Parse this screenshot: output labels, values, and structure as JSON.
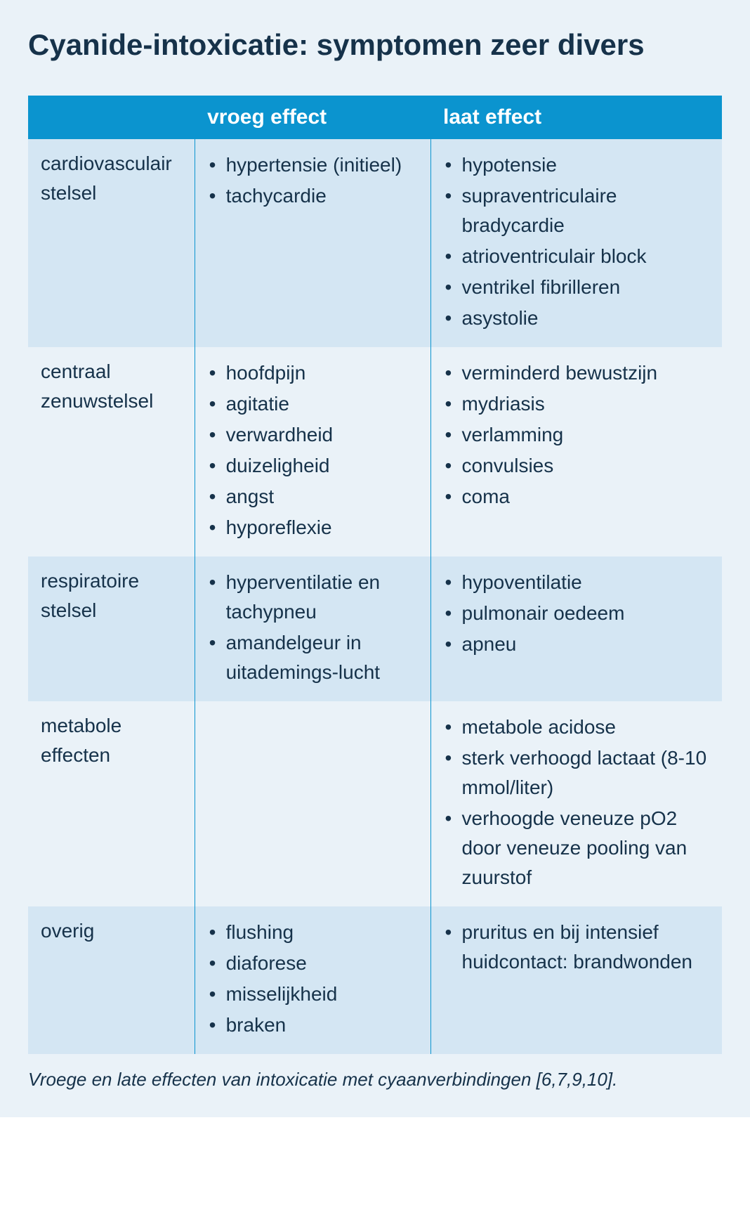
{
  "title": "Cyanide-intoxicatie: symptomen zeer divers",
  "colors": {
    "page_bg": "#eaf2f8",
    "header_bg": "#0b94cf",
    "header_text": "#ffffff",
    "row_alt_bg": "#d4e6f3",
    "row_bg": "#eaf2f8",
    "text": "#16324a",
    "divider": "#0b94cf",
    "caption": "#16324a"
  },
  "typography": {
    "title_fontsize": 42,
    "header_fontsize": 30,
    "cell_fontsize": 28,
    "caption_fontsize": 26
  },
  "table": {
    "columns": [
      "",
      "vroeg effect",
      "laat effect"
    ],
    "rows": [
      {
        "label": "cardiovasculair stelsel",
        "early": [
          "hypertensie (initieel)",
          "tachycardie"
        ],
        "late": [
          "hypotensie",
          "supraventriculaire bradycardie",
          "atrioventriculair block",
          "ventrikel fibrilleren",
          "asystolie"
        ]
      },
      {
        "label": "centraal zenuwstelsel",
        "early": [
          "hoofdpijn",
          "agitatie",
          "verwardheid",
          "duizeligheid",
          "angst",
          "hyporeflexie"
        ],
        "late": [
          "verminderd bewustzijn",
          "mydriasis",
          "verlamming",
          "convulsies",
          "coma"
        ]
      },
      {
        "label": "respiratoire stelsel",
        "early": [
          "hyperventilatie en tachypneu",
          "amandelgeur in uitademings-lucht"
        ],
        "late": [
          "hypoventilatie",
          "pulmonair oedeem",
          "apneu"
        ]
      },
      {
        "label": "metabole effecten",
        "early": [],
        "late": [
          "metabole acidose",
          "sterk verhoogd lactaat (8-10 mmol/liter)",
          "verhoogde veneuze pO2  door veneuze pooling van zuurstof"
        ]
      },
      {
        "label": "overig",
        "early": [
          "flushing",
          "diaforese",
          "misselijkheid",
          "braken"
        ],
        "late": [
          "pruritus en bij intensief huidcontact: brandwonden"
        ]
      }
    ]
  },
  "caption": "Vroege en late effecten van intoxicatie met cyaanverbindingen [6,7,9,10]."
}
